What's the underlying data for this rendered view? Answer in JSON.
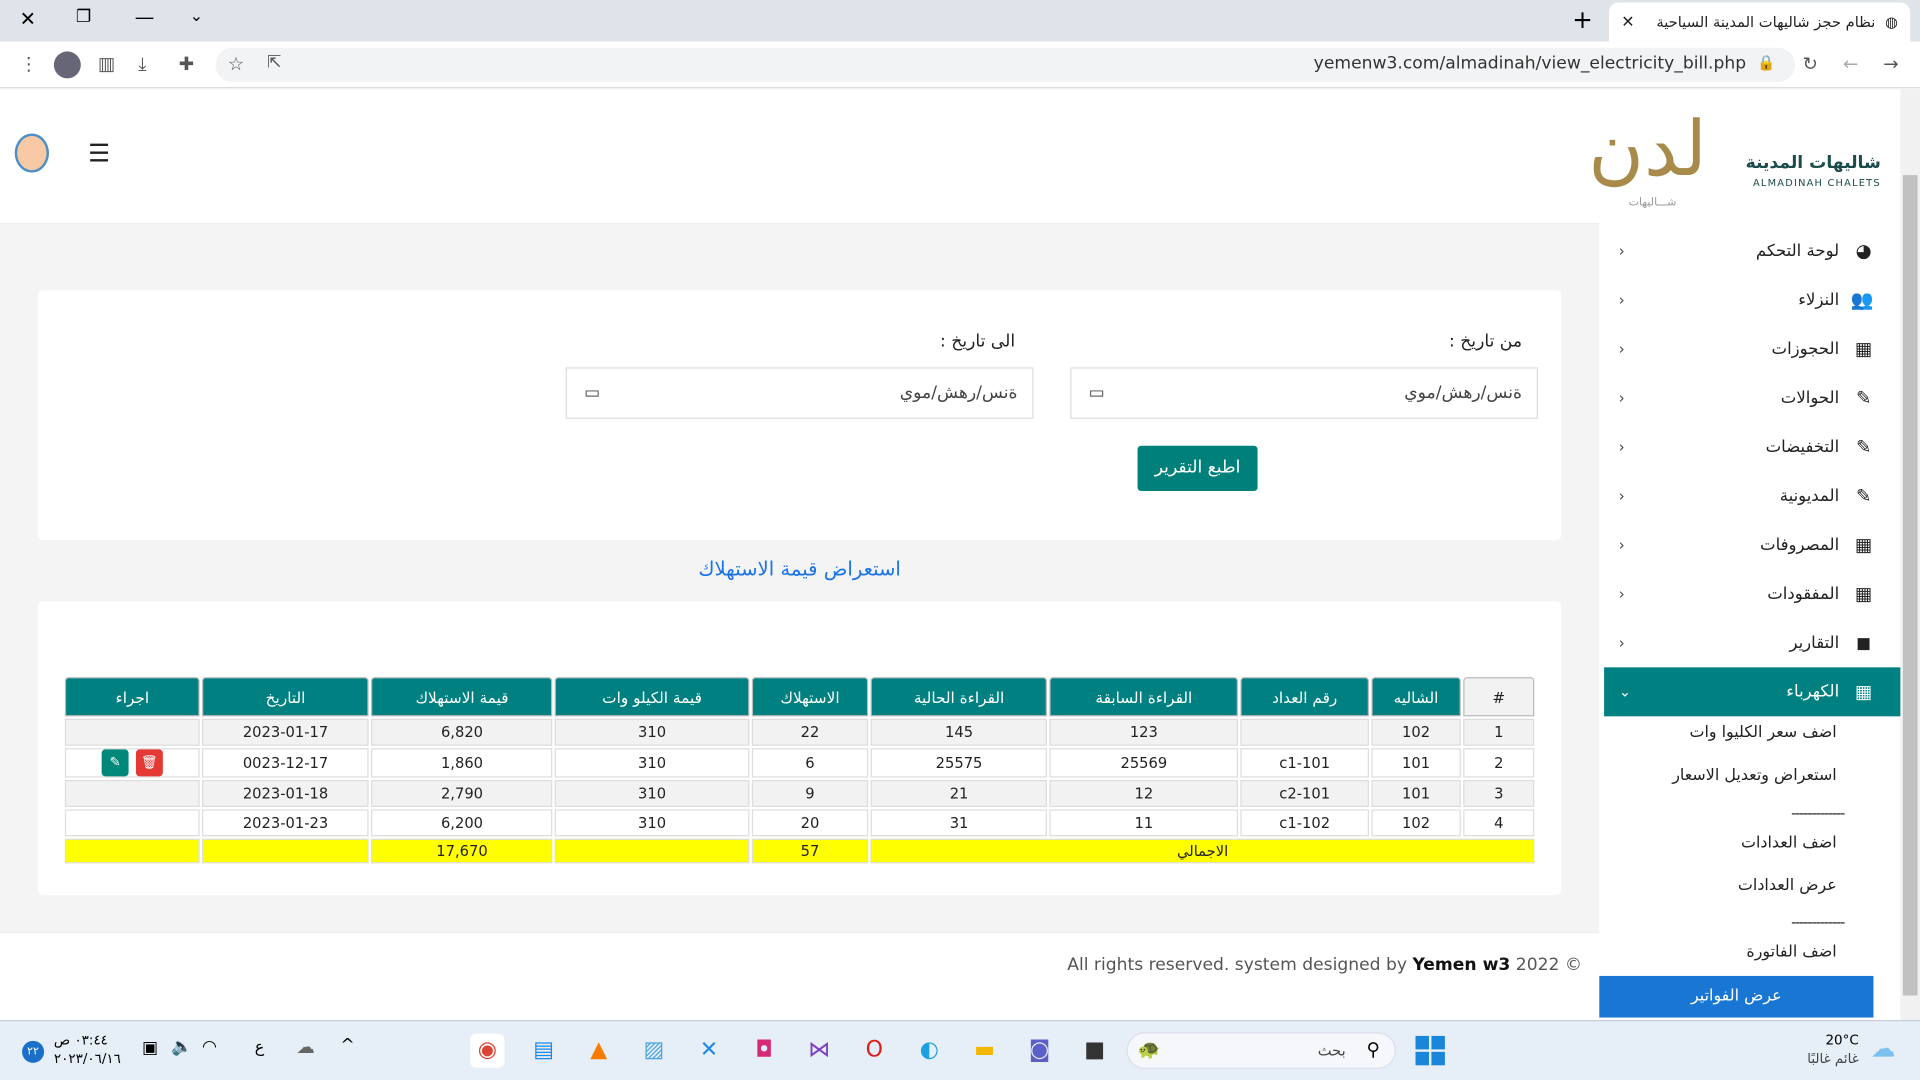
{
  "browser": {
    "tab_title": "نظام حجز شاليهات المدينة السياحية",
    "url": "yemenw3.com/almadinah/view_electricity_bill.php"
  },
  "brand": {
    "name_ar": "شاليهات المدينة",
    "name_en": "ALMADINAH CHALETS",
    "sub": "شـــاليهات"
  },
  "sidebar": {
    "items": [
      {
        "label": "لوحة التحكم",
        "icon": "dashboard-icon"
      },
      {
        "label": "النزلاء",
        "icon": "users-icon"
      },
      {
        "label": "الحجوزات",
        "icon": "grid-icon"
      },
      {
        "label": "الحوالات",
        "icon": "edit-icon"
      },
      {
        "label": "التخفيضات",
        "icon": "edit-icon"
      },
      {
        "label": "المديونية",
        "icon": "edit-icon"
      },
      {
        "label": "المصروفات",
        "icon": "grid-icon"
      },
      {
        "label": "المفقودات",
        "icon": "grid-icon"
      },
      {
        "label": "التقارير",
        "icon": "note-icon"
      },
      {
        "label": "الكهرباء",
        "icon": "grid-icon",
        "active": true
      }
    ],
    "submenu": [
      "اضف سعر الكليوا وات",
      "استعراض وتعديل الاسعار",
      "-------------",
      "اضف العدادات",
      "عرض العدادات",
      "-------------",
      "اضف الفاتورة",
      "عرض الفواتير"
    ]
  },
  "filter": {
    "from_label": "من تاريخ :",
    "to_label": "الى تاريخ :",
    "date_placeholder": "ةنس/رهش/موي",
    "print_button": "اطبع التقرير"
  },
  "section_title": "استعراض قيمة الاستهلاك",
  "table": {
    "headers": [
      "#",
      "الشاليه",
      "رقم العداد",
      "القراءة السابقة",
      "القراءة الحالية",
      "الاستهلاك",
      "قيمة الكيلو وات",
      "قيمة الاستهلاك",
      "التاريخ",
      "اجراء"
    ],
    "rows": [
      [
        "1",
        "102",
        "",
        "123",
        "145",
        "22",
        "310",
        "6,820",
        "2023-01-17",
        ""
      ],
      [
        "2",
        "101",
        "c1-101",
        "25569",
        "25575",
        "6",
        "310",
        "1,860",
        "0023-12-17",
        "actions"
      ],
      [
        "3",
        "101",
        "c2-101",
        "12",
        "21",
        "9",
        "310",
        "2,790",
        "2023-01-18",
        ""
      ],
      [
        "4",
        "102",
        "c1-102",
        "11",
        "31",
        "20",
        "310",
        "6,200",
        "2023-01-23",
        ""
      ]
    ],
    "total": {
      "label": "الاجمالي",
      "consumption": "57",
      "value": "17,670"
    }
  },
  "footer": {
    "text": "All rights reserved. system designed by",
    "brand": "Yemen w3",
    "year": "2022 ©"
  },
  "taskbar": {
    "time": "٠٣:٤٤ ص",
    "date": "٢٠٢٣/٠٦/١٦",
    "lang": "ع",
    "search": "بحث",
    "temp": "20°C",
    "weather": "غائم غالبًا",
    "badge": "٢٢"
  },
  "colors": {
    "teal": "#008080",
    "active_blue": "#1976d2",
    "total_yellow": "#ffff00",
    "title_blue": "#1a73e8"
  }
}
